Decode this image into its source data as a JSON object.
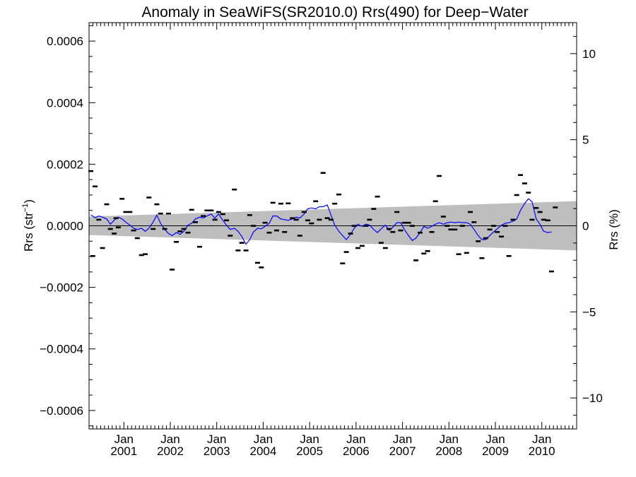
{
  "chart_data": {
    "type": "scatter",
    "title": "Anomaly in SeaWiFS(SR2010.0) Rrs(490) for Deep−Water",
    "ylabel_left": "Rrs (str",
    "ylabel_left_sup": "−1",
    "ylabel_left_close": ")",
    "ylabel_right": "Rrs (%)",
    "xlim": [
      2000.25,
      2010.75
    ],
    "ylim_left": [
      -0.00066,
      0.00066
    ],
    "ylim_right": [
      -11.8,
      11.8
    ],
    "left_ticks": [
      {
        "value": 0.0006,
        "label": "0.0006"
      },
      {
        "value": 0.0004,
        "label": "0.0004"
      },
      {
        "value": 0.0002,
        "label": "0.0002"
      },
      {
        "value": 0.0,
        "label": "0.0000"
      },
      {
        "value": -0.0002,
        "label": "−0.0002"
      },
      {
        "value": -0.0004,
        "label": "−0.0004"
      },
      {
        "value": -0.0006,
        "label": "−0.0006"
      }
    ],
    "right_ticks": [
      {
        "value": 10,
        "label": "10"
      },
      {
        "value": 5,
        "label": "5"
      },
      {
        "value": 0,
        "label": "0"
      },
      {
        "value": -5,
        "label": "−5"
      },
      {
        "value": -10,
        "label": "−10"
      }
    ],
    "x_ticks": [
      {
        "value": 2001,
        "label_top": "Jan",
        "label_bottom": "2001"
      },
      {
        "value": 2002,
        "label_top": "Jan",
        "label_bottom": "2002"
      },
      {
        "value": 2003,
        "label_top": "Jan",
        "label_bottom": "2003"
      },
      {
        "value": 2004,
        "label_top": "Jan",
        "label_bottom": "2004"
      },
      {
        "value": 2005,
        "label_top": "Jan",
        "label_bottom": "2005"
      },
      {
        "value": 2006,
        "label_top": "Jan",
        "label_bottom": "2006"
      },
      {
        "value": 2007,
        "label_top": "Jan",
        "label_bottom": "2007"
      },
      {
        "value": 2008,
        "label_top": "Jan",
        "label_bottom": "2008"
      },
      {
        "value": 2009,
        "label_top": "Jan",
        "label_bottom": "2009"
      },
      {
        "value": 2010,
        "label_top": "Jan",
        "label_bottom": "2010"
      }
    ],
    "uncertainty_band": {
      "x": [
        2000.25,
        2010.75
      ],
      "upper": [
        3e-05,
        8e-05
      ],
      "lower": [
        -3e-05,
        -8e-05
      ],
      "color": "#bebebe"
    },
    "colors": {
      "points": "#000000",
      "line": "#0000ff",
      "zero_line": "#000000"
    },
    "points": [
      [
        2000.29,
        0.000178
      ],
      [
        2000.33,
        -9.8e-05
      ],
      [
        2000.38,
        0.000128
      ],
      [
        2000.46,
        2e-05
      ],
      [
        2000.54,
        -7.2e-05
      ],
      [
        2000.63,
        7e-05
      ],
      [
        2000.71,
        -1e-05
      ],
      [
        2000.79,
        -2.5e-05
      ],
      [
        2000.83,
        2.5e-05
      ],
      [
        2000.88,
        -5e-06
      ],
      [
        2000.96,
        8.8e-05
      ],
      [
        2001.04,
        4.5e-05
      ],
      [
        2001.13,
        4.5e-05
      ],
      [
        2001.21,
        -1.5e-05
      ],
      [
        2001.29,
        -4e-05
      ],
      [
        2001.38,
        -9.5e-05
      ],
      [
        2001.46,
        -9.2e-05
      ],
      [
        2001.54,
        9.2e-05
      ],
      [
        2001.63,
        -1e-05
      ],
      [
        2001.71,
        7e-05
      ],
      [
        2001.79,
        4e-05
      ],
      [
        2001.88,
        -1e-05
      ],
      [
        2001.96,
        4e-05
      ],
      [
        2002.04,
        -0.000142
      ],
      [
        2002.13,
        -5.2e-05
      ],
      [
        2002.21,
        -1.8e-05
      ],
      [
        2002.29,
        -1e-05
      ],
      [
        2002.38,
        -2.2e-05
      ],
      [
        2002.46,
        5.2e-05
      ],
      [
        2002.54,
        1.2e-05
      ],
      [
        2002.63,
        -6.8e-05
      ],
      [
        2002.71,
        3.2e-05
      ],
      [
        2002.79,
        5e-05
      ],
      [
        2002.88,
        5e-05
      ],
      [
        2002.96,
        2e-05
      ],
      [
        2003.04,
        4.5e-05
      ],
      [
        2003.13,
        3.8e-05
      ],
      [
        2003.21,
        1.8e-05
      ],
      [
        2003.29,
        -3.2e-05
      ],
      [
        2003.38,
        0.000118
      ],
      [
        2003.46,
        -8e-05
      ],
      [
        2003.54,
        -5.5e-05
      ],
      [
        2003.63,
        -8e-05
      ],
      [
        2003.71,
        3.5e-05
      ],
      [
        2003.79,
        0.0
      ],
      [
        2003.88,
        -0.00012
      ],
      [
        2003.96,
        -0.000135
      ],
      [
        2004.04,
        1e-05
      ],
      [
        2004.13,
        -2.2e-05
      ],
      [
        2004.21,
        7.5e-05
      ],
      [
        2004.29,
        -1.5e-05
      ],
      [
        2004.38,
        7.2e-05
      ],
      [
        2004.46,
        -2e-05
      ],
      [
        2004.54,
        7.3e-05
      ],
      [
        2004.63,
        2.5e-05
      ],
      [
        2004.71,
        2e-05
      ],
      [
        2004.79,
        -3.2e-05
      ],
      [
        2004.88,
        4.5e-05
      ],
      [
        2004.96,
        1.8e-05
      ],
      [
        2005.04,
        8e-06
      ],
      [
        2005.13,
        8e-05
      ],
      [
        2005.21,
        2e-05
      ],
      [
        2005.29,
        0.000172
      ],
      [
        2005.38,
        2.5e-05
      ],
      [
        2005.46,
        2e-05
      ],
      [
        2005.54,
        7.2e-05
      ],
      [
        2005.63,
        0.000102
      ],
      [
        2005.71,
        -0.000122
      ],
      [
        2005.79,
        -8.5e-05
      ],
      [
        2005.88,
        -2.5e-05
      ],
      [
        2005.96,
        0.0
      ],
      [
        2006.04,
        -7.2e-05
      ],
      [
        2006.13,
        -6.5e-05
      ],
      [
        2006.21,
        0.0
      ],
      [
        2006.29,
        2e-05
      ],
      [
        2006.38,
        5.5e-05
      ],
      [
        2006.46,
        9.5e-05
      ],
      [
        2006.54,
        -5.5e-05
      ],
      [
        2006.63,
        -7.2e-05
      ],
      [
        2006.71,
        -1e-05
      ],
      [
        2006.79,
        -2e-05
      ],
      [
        2006.88,
        4.5e-05
      ],
      [
        2006.96,
        -1.5e-05
      ],
      [
        2007.04,
        1e-05
      ],
      [
        2007.13,
        1e-05
      ],
      [
        2007.21,
        0.0
      ],
      [
        2007.29,
        -0.000112
      ],
      [
        2007.38,
        -2.2e-05
      ],
      [
        2007.46,
        -9e-05
      ],
      [
        2007.54,
        -8.2e-05
      ],
      [
        2007.63,
        -2e-05
      ],
      [
        2007.71,
        8e-05
      ],
      [
        2007.79,
        0.000162
      ],
      [
        2007.88,
        3e-05
      ],
      [
        2007.96,
        0.0
      ],
      [
        2008.04,
        -1.2e-05
      ],
      [
        2008.13,
        -1.2e-05
      ],
      [
        2008.21,
        -9.2e-05
      ],
      [
        2008.29,
        0.0
      ],
      [
        2008.38,
        -8.8e-05
      ],
      [
        2008.46,
        4.5e-05
      ],
      [
        2008.54,
        1.2e-05
      ],
      [
        2008.63,
        -5e-05
      ],
      [
        2008.71,
        -0.000105
      ],
      [
        2008.79,
        -4e-05
      ],
      [
        2008.88,
        -1.2e-05
      ],
      [
        2008.96,
        0.0
      ],
      [
        2009.04,
        -2e-05
      ],
      [
        2009.13,
        -3.5e-05
      ],
      [
        2009.21,
        0.0
      ],
      [
        2009.29,
        -9.8e-05
      ],
      [
        2009.38,
        2e-05
      ],
      [
        2009.46,
        0.0001
      ],
      [
        2009.54,
        0.000165
      ],
      [
        2009.63,
        0.000138
      ],
      [
        2009.71,
        0.000108
      ],
      [
        2009.79,
        2e-05
      ],
      [
        2009.88,
        5.8e-05
      ],
      [
        2009.96,
        4.5e-05
      ],
      [
        2010.04,
        2e-05
      ],
      [
        2010.13,
        1.8e-05
      ],
      [
        2010.21,
        -0.000148
      ],
      [
        2010.29,
        6e-05
      ]
    ],
    "line": [
      [
        2000.29,
        3.6e-05
      ],
      [
        2000.38,
        2.6e-05
      ],
      [
        2000.46,
        3.2e-05
      ],
      [
        2000.54,
        2.8e-05
      ],
      [
        2000.63,
        2.2e-05
      ],
      [
        2000.71,
        5e-06
      ],
      [
        2000.79,
        1.8e-05
      ],
      [
        2000.88,
        2.8e-05
      ],
      [
        2000.96,
        2.2e-05
      ],
      [
        2001.04,
        1.2e-05
      ],
      [
        2001.13,
        2e-06
      ],
      [
        2001.21,
        -8e-06
      ],
      [
        2001.29,
        -1.2e-05
      ],
      [
        2001.38,
        -8e-06
      ],
      [
        2001.46,
        -1.8e-05
      ],
      [
        2001.54,
        -8e-06
      ],
      [
        2001.63,
        1.2e-05
      ],
      [
        2001.71,
        3.5e-05
      ],
      [
        2001.79,
        8e-06
      ],
      [
        2001.88,
        -1.2e-05
      ],
      [
        2001.96,
        -2.5e-05
      ],
      [
        2002.04,
        -3.2e-05
      ],
      [
        2002.13,
        -2.2e-05
      ],
      [
        2002.21,
        -2.8e-05
      ],
      [
        2002.29,
        -1.8e-05
      ],
      [
        2002.38,
        2e-06
      ],
      [
        2002.46,
        8e-06
      ],
      [
        2002.54,
        2.2e-05
      ],
      [
        2002.63,
        2.8e-05
      ],
      [
        2002.71,
        2.5e-05
      ],
      [
        2002.79,
        3.2e-05
      ],
      [
        2002.88,
        3.8e-05
      ],
      [
        2002.96,
        2.5e-05
      ],
      [
        2003.04,
        3.8e-05
      ],
      [
        2003.13,
        1.8e-05
      ],
      [
        2003.21,
        2e-06
      ],
      [
        2003.29,
        -1.2e-05
      ],
      [
        2003.38,
        -8e-06
      ],
      [
        2003.46,
        -1.8e-05
      ],
      [
        2003.54,
        -3.5e-05
      ],
      [
        2003.63,
        -6e-05
      ],
      [
        2003.71,
        -4.5e-05
      ],
      [
        2003.79,
        -2e-05
      ],
      [
        2003.88,
        -8e-06
      ],
      [
        2003.96,
        -1e-05
      ],
      [
        2004.04,
        -2e-06
      ],
      [
        2004.13,
        8e-06
      ],
      [
        2004.21,
        3.2e-05
      ],
      [
        2004.29,
        3.2e-05
      ],
      [
        2004.38,
        2.2e-05
      ],
      [
        2004.46,
        2e-05
      ],
      [
        2004.54,
        1.8e-05
      ],
      [
        2004.63,
        2.2e-05
      ],
      [
        2004.71,
        2.8e-05
      ],
      [
        2004.79,
        2.5e-05
      ],
      [
        2004.88,
        3.8e-05
      ],
      [
        2004.96,
        5.5e-05
      ],
      [
        2005.04,
        5.8e-05
      ],
      [
        2005.13,
        5.5e-05
      ],
      [
        2005.21,
        6.2e-05
      ],
      [
        2005.29,
        6.2e-05
      ],
      [
        2005.38,
        6.8e-05
      ],
      [
        2005.46,
        3.5e-05
      ],
      [
        2005.54,
        2e-06
      ],
      [
        2005.63,
        -1.8e-05
      ],
      [
        2005.71,
        -3.2e-05
      ],
      [
        2005.79,
        -4.5e-05
      ],
      [
        2005.88,
        -2.8e-05
      ],
      [
        2005.96,
        -8e-06
      ],
      [
        2006.04,
        5e-06
      ],
      [
        2006.13,
        -2e-06
      ],
      [
        2006.21,
        5e-06
      ],
      [
        2006.29,
        2e-06
      ],
      [
        2006.38,
        -1.2e-05
      ],
      [
        2006.46,
        -2.2e-05
      ],
      [
        2006.54,
        -1e-05
      ],
      [
        2006.63,
        2e-06
      ],
      [
        2006.71,
        -1.5e-05
      ],
      [
        2006.79,
        -5e-06
      ],
      [
        2006.88,
        1e-05
      ],
      [
        2006.96,
        1e-05
      ],
      [
        2007.04,
        -1.2e-05
      ],
      [
        2007.13,
        -3.2e-05
      ],
      [
        2007.21,
        -4.8e-05
      ],
      [
        2007.29,
        -4e-05
      ],
      [
        2007.38,
        -2.2e-05
      ],
      [
        2007.46,
        -2e-06
      ],
      [
        2007.54,
        -8e-06
      ],
      [
        2007.63,
        -2e-06
      ],
      [
        2007.71,
        5e-06
      ],
      [
        2007.79,
        1e-05
      ],
      [
        2007.88,
        5e-06
      ],
      [
        2007.96,
        1e-05
      ],
      [
        2008.04,
        1.2e-05
      ],
      [
        2008.13,
        1e-05
      ],
      [
        2008.21,
        1.2e-05
      ],
      [
        2008.29,
        1e-05
      ],
      [
        2008.38,
        1e-05
      ],
      [
        2008.46,
        5e-06
      ],
      [
        2008.54,
        -1.2e-05
      ],
      [
        2008.63,
        -3.2e-05
      ],
      [
        2008.71,
        -4.5e-05
      ],
      [
        2008.79,
        -4.5e-05
      ],
      [
        2008.88,
        -3.2e-05
      ],
      [
        2008.96,
        -2e-05
      ],
      [
        2009.04,
        -1e-05
      ],
      [
        2009.13,
        2e-06
      ],
      [
        2009.21,
        8e-06
      ],
      [
        2009.29,
        1e-05
      ],
      [
        2009.38,
        1.5e-05
      ],
      [
        2009.46,
        2.2e-05
      ],
      [
        2009.54,
        5e-05
      ],
      [
        2009.63,
        7.2e-05
      ],
      [
        2009.71,
        8.8e-05
      ],
      [
        2009.79,
        7.8e-05
      ],
      [
        2009.88,
        2.2e-05
      ],
      [
        2009.96,
        5e-06
      ],
      [
        2010.04,
        -1.8e-05
      ],
      [
        2010.13,
        -2.2e-05
      ],
      [
        2010.21,
        -2e-05
      ]
    ]
  }
}
